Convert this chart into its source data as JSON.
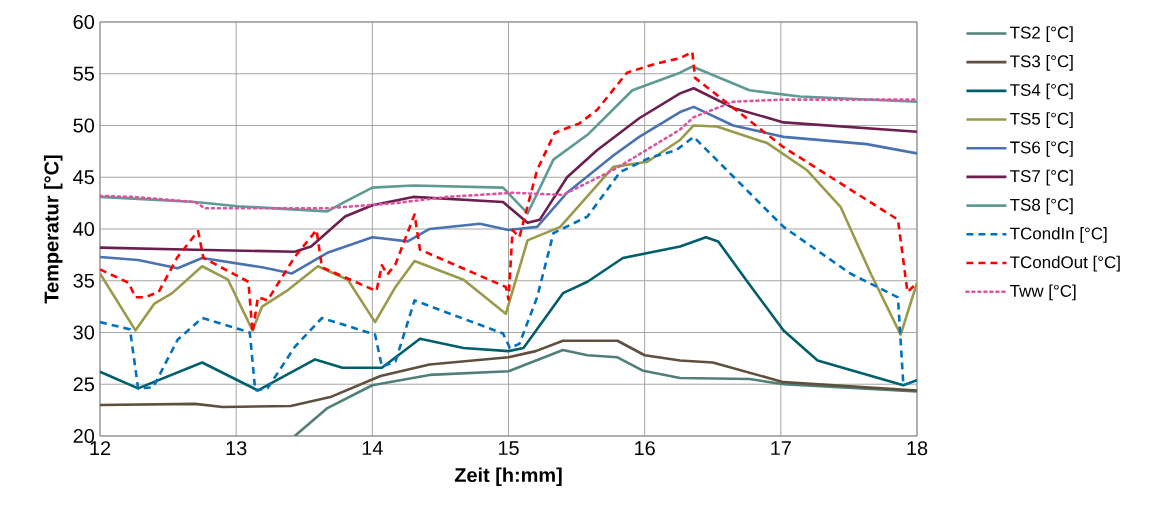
{
  "chart_data": {
    "type": "line",
    "xlabel": "Zeit [h:mm]",
    "ylabel": "Temperatur [°C]",
    "xlim": [
      12,
      18
    ],
    "ylim": [
      20,
      60
    ],
    "xticks": [
      12,
      13,
      14,
      15,
      16,
      17,
      18
    ],
    "yticks": [
      20,
      25,
      30,
      35,
      40,
      45,
      50,
      55,
      60
    ],
    "grid": true,
    "legend": "right",
    "series": [
      {
        "name": "TS2 [°C]",
        "color": "#4f7f78",
        "line_style": "solid",
        "x": [
          13.43,
          13.67,
          14.0,
          14.42,
          15.0,
          15.4,
          15.58,
          15.8,
          15.99,
          16.26,
          16.77,
          17.02,
          18
        ],
        "values": [
          20,
          22.7,
          24.9,
          25.9,
          26.25,
          28.3,
          27.8,
          27.6,
          26.3,
          25.6,
          25.5,
          25.0,
          24.3
        ]
      },
      {
        "name": "TS3 [°C]",
        "color": "#5f4f3e",
        "line_style": "solid",
        "x": [
          12,
          12.7,
          12.9,
          13.4,
          13.7,
          14.06,
          14.42,
          15.0,
          15.2,
          15.4,
          15.8,
          16.0,
          16.26,
          16.5,
          17.02,
          18
        ],
        "values": [
          23.0,
          23.1,
          22.8,
          22.9,
          23.8,
          25.8,
          26.9,
          27.6,
          28.2,
          29.2,
          29.2,
          27.8,
          27.3,
          27.1,
          25.2,
          24.4
        ]
      },
      {
        "name": "TS4 [°C]",
        "color": "#005f6b",
        "line_style": "solid",
        "x": [
          12.0,
          12.28,
          12.75,
          13.16,
          13.58,
          13.78,
          14.07,
          14.35,
          14.67,
          15.0,
          15.11,
          15.4,
          15.58,
          15.84,
          16.26,
          16.45,
          16.54,
          16.76,
          17.02,
          17.27,
          17.9,
          18
        ],
        "values": [
          26.2,
          24.6,
          27.1,
          24.4,
          27.4,
          26.6,
          26.6,
          29.4,
          28.5,
          28.2,
          28.5,
          33.8,
          34.9,
          37.2,
          38.3,
          39.2,
          38.8,
          34.8,
          30.2,
          27.3,
          24.9,
          25.4
        ]
      },
      {
        "name": "TS5 [°C]",
        "color": "#9a9a4a",
        "line_style": "solid",
        "x": [
          12.0,
          12.26,
          12.4,
          12.53,
          12.75,
          12.94,
          13.12,
          13.19,
          13.38,
          13.6,
          13.82,
          14.02,
          14.17,
          14.31,
          14.67,
          14.98,
          15.14,
          15.38,
          15.77,
          16.02,
          16.26,
          16.36,
          16.53,
          16.9,
          17.19,
          17.44,
          17.66,
          17.88,
          18
        ],
        "values": [
          35.7,
          30.2,
          32.8,
          33.8,
          36.4,
          35.1,
          30.2,
          32.5,
          34.1,
          36.4,
          35.1,
          31.0,
          34.4,
          36.9,
          35.1,
          31.8,
          38.9,
          40.2,
          46.0,
          46.5,
          48.6,
          50.0,
          49.9,
          48.3,
          45.7,
          42.1,
          35.7,
          29.8,
          34.8
        ]
      },
      {
        "name": "TS6 [°C]",
        "color": "#4a72b0",
        "line_style": "solid",
        "x": [
          12.0,
          12.28,
          12.57,
          12.75,
          13.19,
          13.41,
          13.67,
          14.0,
          14.26,
          14.42,
          14.79,
          15.0,
          15.21,
          15.43,
          15.77,
          15.96,
          16.26,
          16.36,
          16.65,
          17.02,
          17.63,
          18
        ],
        "values": [
          37.3,
          37.0,
          36.2,
          37.2,
          36.3,
          35.7,
          37.7,
          39.2,
          38.8,
          40.0,
          40.5,
          39.9,
          40.2,
          43.5,
          47.1,
          48.9,
          51.3,
          51.8,
          50.0,
          48.9,
          48.2,
          47.3
        ]
      },
      {
        "name": "TS7 [°C]",
        "color": "#6b1f4f",
        "line_style": "solid",
        "x": [
          12.0,
          12.7,
          13.43,
          13.55,
          13.8,
          14.0,
          14.3,
          14.96,
          15.14,
          15.23,
          15.43,
          15.65,
          15.96,
          16.26,
          16.36,
          16.65,
          17.02,
          18
        ],
        "values": [
          38.2,
          38.0,
          37.8,
          38.3,
          41.2,
          42.3,
          43.1,
          42.6,
          40.6,
          40.9,
          45.0,
          47.6,
          50.7,
          53.1,
          53.6,
          51.7,
          50.3,
          49.4
        ]
      },
      {
        "name": "TS8 [°C]",
        "color": "#5f9a94",
        "line_style": "solid",
        "x": [
          12.0,
          12.7,
          13.01,
          13.67,
          13.78,
          14.0,
          14.3,
          14.96,
          15.14,
          15.33,
          15.58,
          15.91,
          16.26,
          16.35,
          16.77,
          17.14,
          18
        ],
        "values": [
          43.1,
          42.6,
          42.2,
          41.7,
          42.5,
          44.0,
          44.2,
          44.0,
          41.5,
          46.7,
          49.1,
          53.4,
          55.1,
          55.7,
          53.4,
          52.8,
          52.3
        ]
      },
      {
        "name": "TCondIn [°C]",
        "color": "#0070c0",
        "line_style": "dashed",
        "x": [
          12.0,
          12.22,
          12.28,
          12.39,
          12.57,
          12.75,
          13.1,
          13.14,
          13.23,
          13.43,
          13.63,
          14.02,
          14.07,
          14.17,
          14.31,
          14.96,
          15.01,
          15.08,
          15.21,
          15.33,
          15.58,
          15.82,
          16.04,
          16.23,
          16.36,
          17.02,
          17.51,
          17.86,
          17.9,
          18
        ],
        "values": [
          31.0,
          30.3,
          24.6,
          24.7,
          29.3,
          31.4,
          30.0,
          24.4,
          24.6,
          28.6,
          31.4,
          29.8,
          26.7,
          27.2,
          33.1,
          29.9,
          28.5,
          28.9,
          33.4,
          39.6,
          41.2,
          45.5,
          46.9,
          47.6,
          48.9,
          40.2,
          35.7,
          33.4,
          24.9,
          25.4
        ]
      },
      {
        "name": "TCondOut [°C]",
        "color": "#ff0000",
        "line_style": "dashed",
        "x": [
          12.0,
          12.21,
          12.26,
          12.33,
          12.43,
          12.57,
          12.72,
          12.76,
          13.09,
          13.12,
          13.16,
          13.23,
          13.43,
          13.59,
          13.63,
          14.03,
          14.07,
          14.11,
          14.17,
          14.31,
          14.35,
          14.98,
          15.0,
          15.03,
          15.08,
          15.21,
          15.34,
          15.52,
          15.65,
          15.87,
          16.09,
          16.26,
          16.35,
          16.37,
          17.02,
          17.86,
          17.93,
          18
        ],
        "values": [
          36.1,
          34.8,
          33.4,
          33.4,
          33.9,
          37.3,
          39.8,
          37.2,
          34.9,
          30.0,
          33.4,
          33.1,
          37.3,
          39.9,
          36.3,
          34.0,
          36.5,
          35.6,
          36.6,
          41.4,
          38.0,
          34.4,
          33.2,
          39.9,
          39.2,
          45.7,
          49.3,
          50.2,
          51.5,
          55.1,
          56.0,
          56.5,
          57.1,
          54.6,
          47.9,
          40.9,
          33.9,
          34.8
        ]
      },
      {
        "name": "Tww [°C]",
        "color": "#d9559f",
        "line_style": "dotted",
        "x": [
          12.0,
          12.24,
          12.7,
          12.77,
          13.67,
          14.17,
          14.55,
          15.03,
          15.4,
          15.77,
          16.26,
          16.36,
          16.65,
          17.02,
          18
        ],
        "values": [
          43.2,
          43.1,
          42.6,
          42.0,
          42.0,
          42.5,
          43.1,
          43.5,
          43.3,
          45.7,
          49.6,
          50.8,
          52.3,
          52.5,
          52.5
        ]
      }
    ]
  }
}
